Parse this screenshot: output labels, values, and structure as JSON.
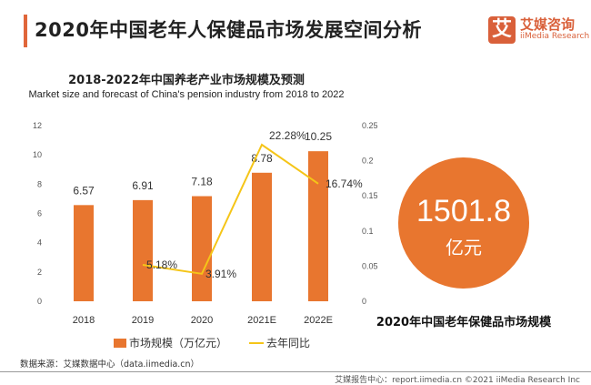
{
  "header": {
    "title": "2020年中国老年人保健品市场发展空间分析",
    "logo_cn": "艾媒咨询",
    "logo_en": "iiMedia Research",
    "logo_mark": "艾"
  },
  "chart_data": {
    "type": "bar+line",
    "title": "2018-2022年中国养老产业市场规模及预测",
    "subtitle": "Market size and forecast of China's pension industry from 2018 to 2022",
    "categories": [
      "2018",
      "2019",
      "2020",
      "2021E",
      "2022E"
    ],
    "series": [
      {
        "name": "市场规模（万亿元）",
        "type": "bar",
        "axis": "left",
        "values": [
          6.57,
          6.91,
          7.18,
          8.78,
          10.25
        ],
        "labels": [
          "6.57",
          "6.91",
          "7.18",
          "8.78",
          "10.25"
        ],
        "color": "#e8762f"
      },
      {
        "name": "去年同比",
        "type": "line",
        "axis": "right",
        "values": [
          null,
          0.0518,
          0.0391,
          0.2228,
          0.1674
        ],
        "labels": [
          "",
          "5.18%",
          "3.91%",
          "22.28%",
          "16.74%"
        ],
        "color": "#f5c518"
      }
    ],
    "left_axis": {
      "ylim": [
        0,
        12
      ],
      "ticks": [
        "0",
        "2",
        "4",
        "6",
        "8",
        "10",
        "12"
      ]
    },
    "right_axis": {
      "ylim": [
        0,
        0.25
      ],
      "ticks": [
        "0",
        "0.05",
        "0.1",
        "0.15",
        "0.2",
        "0.25"
      ]
    },
    "grid": false,
    "legend": "bottom"
  },
  "highlight": {
    "value": "1501.8",
    "unit": "亿元",
    "label": "2020年中国老年保健品市场规模"
  },
  "source": "数据来源：艾媒数据中心（data.iimedia.cn）",
  "footer": "艾媒报告中心：report.iimedia.cn  ©2021  iiMedia Research Inc"
}
